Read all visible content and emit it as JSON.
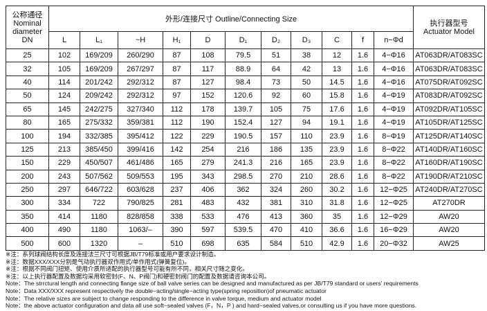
{
  "table": {
    "header": {
      "dn": [
        "公称通径",
        "Nominal",
        "diameter",
        "DN"
      ],
      "group": "外形/连接尺寸 Outline/Connecting Size",
      "actuator": [
        "执行器型号",
        "Actuator Model"
      ],
      "columns": [
        "L",
        "L₁",
        "~H",
        "H₁",
        "D",
        "D₁",
        "D₂",
        "D₃",
        "C",
        "f",
        "n−Φd"
      ]
    },
    "rows": [
      [
        "25",
        "102",
        "169/209",
        "260/290",
        "87",
        "108",
        "79.5",
        "51",
        "38",
        "12",
        "1.6",
        "4−Φ16",
        "AT063DR/AT083SC"
      ],
      [
        "32",
        "105",
        "169/209",
        "267/297",
        "87",
        "117",
        "88.9",
        "64",
        "42",
        "13",
        "1.6",
        "4−Φ16",
        "AT063DR/AT083SC"
      ],
      [
        "40",
        "114",
        "201/242",
        "292/312",
        "87",
        "127",
        "98.4",
        "73",
        "50",
        "14.5",
        "1.6",
        "4−Φ16",
        "AT075DR/AT092SC"
      ],
      [
        "50",
        "124",
        "209/242",
        "292/312",
        "97",
        "152",
        "120.6",
        "92",
        "60",
        "15.8",
        "1.6",
        "4−Φ19",
        "AT083DR/AT092SC"
      ],
      [
        "65",
        "145",
        "242/275",
        "327/340",
        "112",
        "178",
        "139.7",
        "105",
        "75",
        "17.6",
        "1.6",
        "4−Φ19",
        "AT092DR/AT105SC"
      ],
      [
        "80",
        "165",
        "275/332",
        "359/381",
        "112",
        "190",
        "152.4",
        "127",
        "94",
        "19.1",
        "1.6",
        "4−Φ19",
        "AT105DR/AT125SC"
      ],
      [
        "100",
        "194",
        "332/385",
        "395/412",
        "122",
        "229",
        "190.5",
        "157",
        "110",
        "23.9",
        "1.6",
        "8−Φ19",
        "AT125DR/AT140SC"
      ],
      [
        "125",
        "213",
        "385/450",
        "399/416",
        "142",
        "254",
        "216",
        "186",
        "135",
        "23.9",
        "1.6",
        "8−Φ22",
        "AT140DR/AT160SC"
      ],
      [
        "150",
        "229",
        "450/507",
        "461/486",
        "165",
        "279",
        "241.3",
        "216",
        "165",
        "23.9",
        "1.6",
        "8−Φ22",
        "AT160DR/AT190SC"
      ],
      [
        "200",
        "243",
        "507/562",
        "509/553",
        "195",
        "343",
        "298.5",
        "270",
        "210",
        "28.6",
        "1.6",
        "8−Φ22",
        "AT190DR/AT210SC"
      ],
      [
        "250",
        "297",
        "646/722",
        "603/628",
        "237",
        "406",
        "362",
        "324",
        "260",
        "30.2",
        "1.6",
        "12−Φ25",
        "AT240DR/AT270SC"
      ],
      [
        "300",
        "334",
        "722",
        "790/825",
        "281",
        "483",
        "432",
        "381",
        "310",
        "31.8",
        "1.6",
        "12−Φ25",
        "AT270DR"
      ],
      [
        "350",
        "414",
        "1180",
        "828/858",
        "338",
        "533",
        "476",
        "413",
        "360",
        "35",
        "1.6",
        "12−Φ29",
        "AW20"
      ],
      [
        "400",
        "490",
        "1180",
        "1063/–",
        "390",
        "597",
        "539.5",
        "470",
        "410",
        "36.6",
        "1.6",
        "16−Φ29",
        "AW20"
      ],
      [
        "500",
        "600",
        "1320",
        "–",
        "510",
        "698",
        "635",
        "584",
        "510",
        "42.9",
        "1.6",
        "20−Φ32",
        "AW25"
      ]
    ]
  },
  "notes": [
    "※注：系列球阀结构长度及连接法兰尺寸可根据JB/T79标准或用户要求设计制造。",
    "※注：数据XXX/XXX分别是气动执行器双作用式/单作用式(弹簧复位)。",
    "※注：根据不同阀门扭矩、使用介质所适配的执行器型号可能有所不同，相关尺寸随之变化。",
    "※注：以上执行器配置及数据均采用软密封(F、N、P阀门)和硬密封阀门的配置及数据请咨询本公司。",
    "Note：The strrctural length and connecting flange size of ball valve series can be designed and manufactured as per JB/T79 standard or users' requirements",
    "Note：Data XXX/XXX represent respectively the double−acting/single−acting type(spring reposition)of pneumatic actuator",
    "Note：The relative sizes are subject to change responding to the difference in valve torque, medium and actuator model",
    "Note：the above actuator  configuration and data  all use soft−sealed valves (F，N，P ) and  hard−sealed valves,or consulting us if you have more questions."
  ]
}
